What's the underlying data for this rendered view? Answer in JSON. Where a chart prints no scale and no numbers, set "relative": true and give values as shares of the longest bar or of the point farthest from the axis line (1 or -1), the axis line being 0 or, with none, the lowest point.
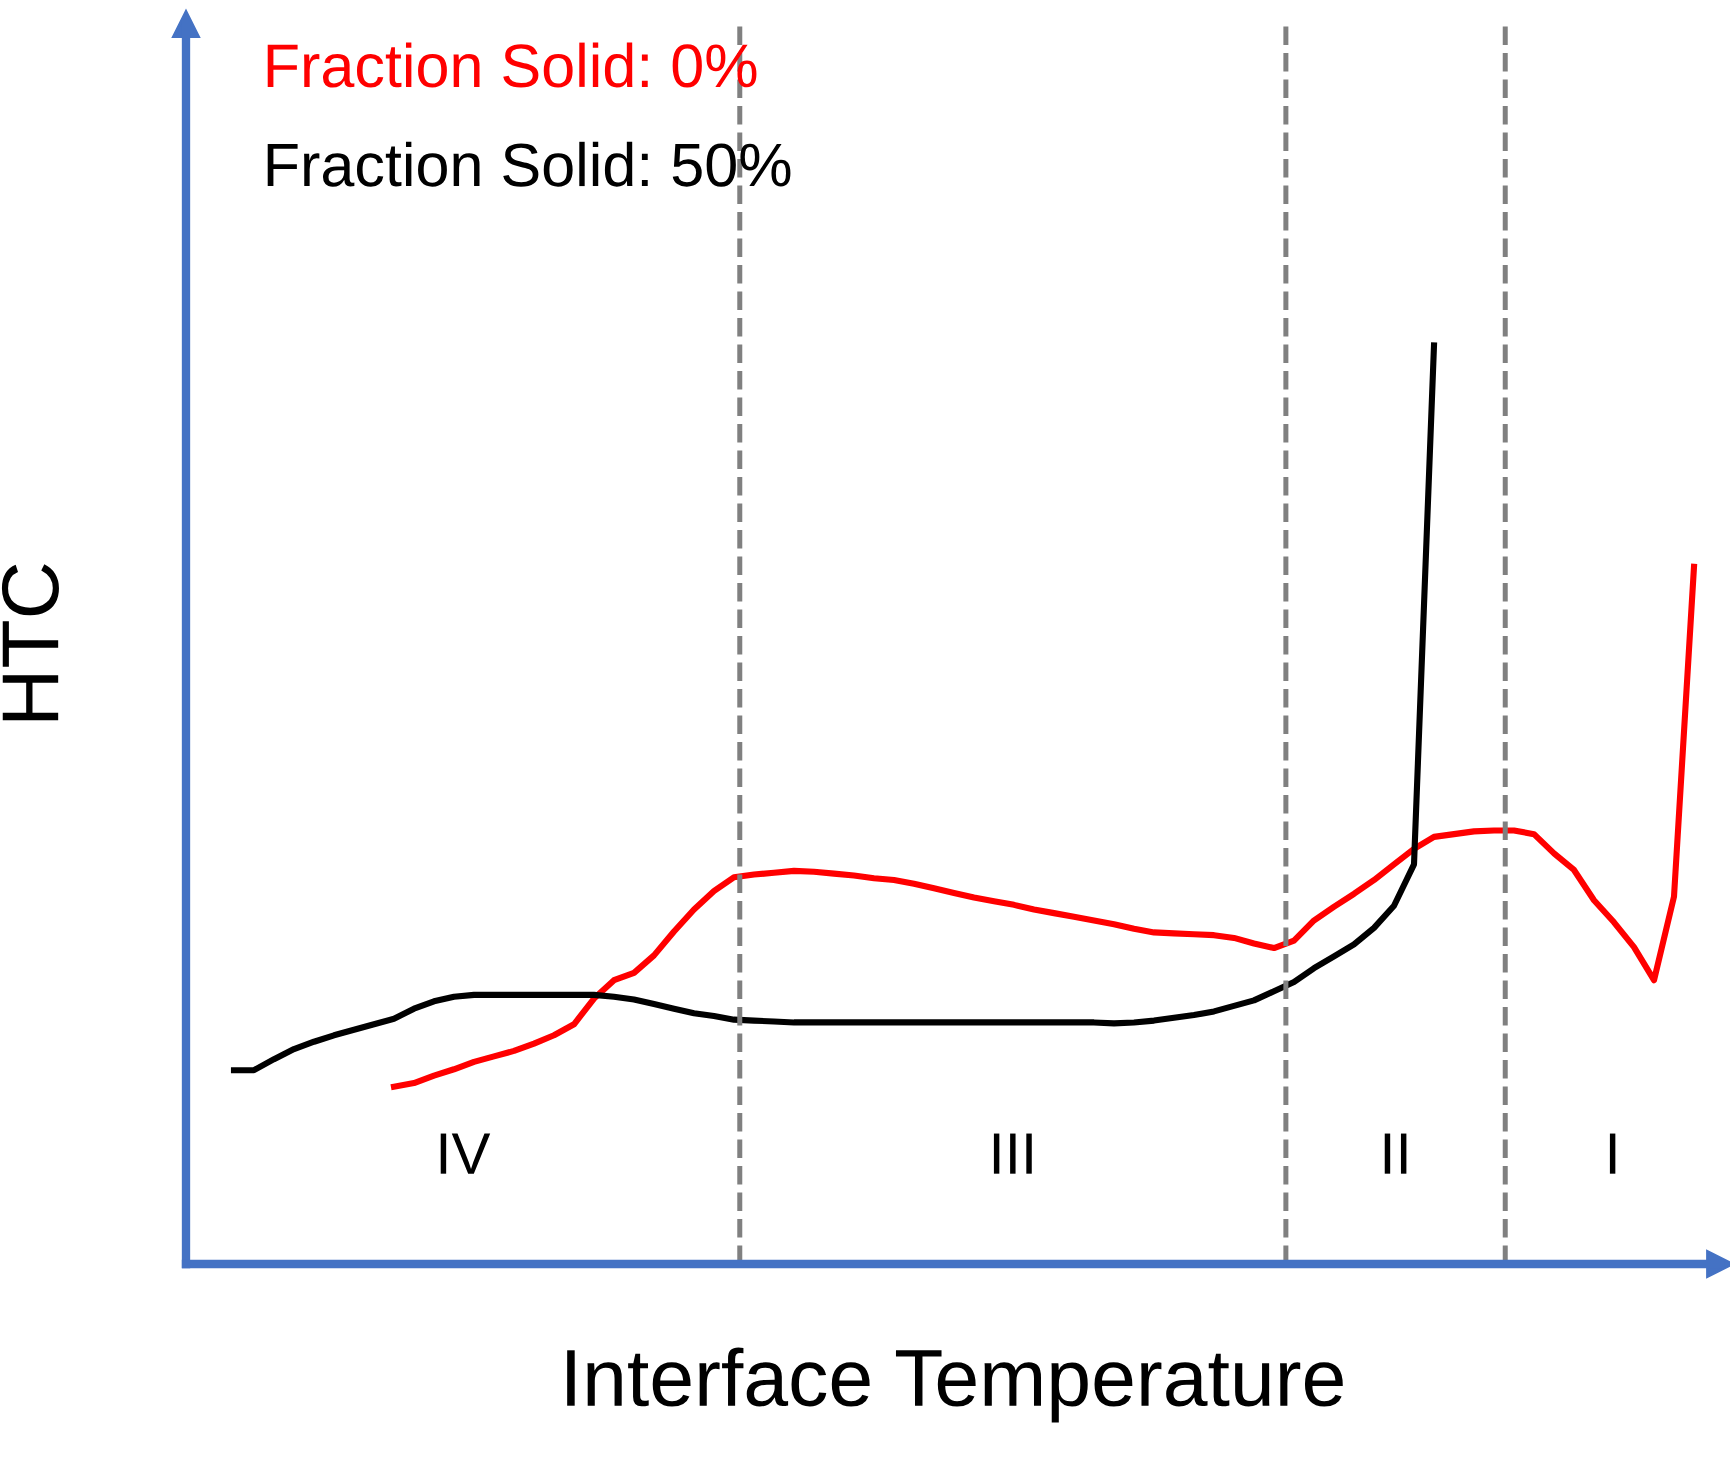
{
  "chart_data": {
    "type": "line",
    "relative": true,
    "xlabel": "Interface Temperature",
    "ylabel": "HTC",
    "tick_labels": false,
    "legend": "top left",
    "marker": "none",
    "line_style": "solid",
    "categories": [
      null,
      null,
      null,
      null,
      null,
      null,
      null,
      null,
      null,
      null,
      null,
      null,
      null,
      null,
      null,
      null,
      null,
      null,
      null,
      null,
      null,
      null,
      null,
      null,
      null,
      null,
      null,
      null,
      null,
      null,
      null,
      null,
      null,
      null,
      null,
      null,
      null,
      null,
      null,
      null,
      null,
      null,
      null,
      null,
      null,
      null,
      null,
      null,
      null,
      null,
      null,
      null,
      null,
      null,
      null,
      null,
      null,
      null,
      null,
      null,
      null,
      null,
      null,
      null,
      null,
      null,
      null,
      null,
      null,
      null,
      null,
      null,
      null,
      null
    ],
    "series": [
      {
        "name": "Fraction Solid: 0%",
        "color": "#ff0000",
        "values": [
          null,
          null,
          null,
          null,
          null,
          null,
          null,
          null,
          0.193,
          0.197,
          0.205,
          0.212,
          0.22,
          0.226,
          0.232,
          0.24,
          0.249,
          0.261,
          0.289,
          0.309,
          0.317,
          0.336,
          0.362,
          0.386,
          0.406,
          0.421,
          0.424,
          0.426,
          0.428,
          0.427,
          0.425,
          0.423,
          0.42,
          0.418,
          0.414,
          0.409,
          0.404,
          0.399,
          0.395,
          0.391,
          0.386,
          0.382,
          0.378,
          0.374,
          0.37,
          0.365,
          0.361,
          0.36,
          0.359,
          0.358,
          0.355,
          0.349,
          0.344,
          0.352,
          0.374,
          0.389,
          0.403,
          0.418,
          0.435,
          0.452,
          0.465,
          0.468,
          0.471,
          0.472,
          0.472,
          0.468,
          0.447,
          0.429,
          0.396,
          0.372,
          0.345,
          0.309,
          0.4,
          0.759
        ]
      },
      {
        "name": "Fraction Solid: 50%",
        "color": "#000000",
        "values": [
          0.211,
          0.211,
          0.223,
          0.234,
          0.242,
          0.249,
          0.255,
          0.261,
          0.267,
          0.278,
          0.286,
          0.291,
          0.293,
          0.293,
          0.293,
          0.293,
          0.293,
          0.293,
          0.293,
          0.291,
          0.288,
          0.283,
          0.278,
          0.273,
          0.27,
          0.266,
          0.265,
          0.264,
          0.263,
          0.263,
          0.263,
          0.263,
          0.263,
          0.263,
          0.263,
          0.263,
          0.263,
          0.263,
          0.263,
          0.263,
          0.263,
          0.263,
          0.263,
          0.263,
          0.262,
          0.263,
          0.265,
          0.268,
          0.271,
          0.275,
          0.281,
          0.287,
          0.297,
          0.307,
          0.322,
          0.335,
          0.348,
          0.366,
          0.39,
          0.435,
          1.0,
          null,
          null,
          null,
          null,
          null,
          null,
          null,
          null,
          null,
          null,
          null,
          null,
          null
        ]
      }
    ],
    "annotations": [
      "IV",
      "III",
      "II",
      "I"
    ]
  }
}
